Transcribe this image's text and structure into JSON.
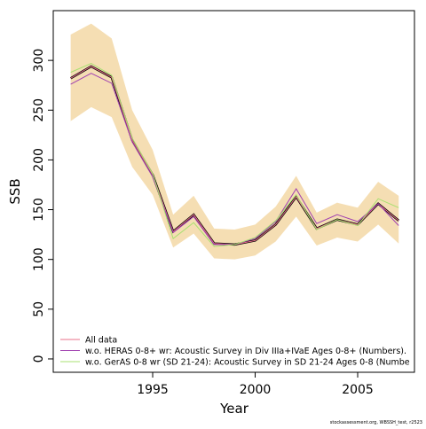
{
  "chart_data": {
    "type": "line",
    "x_label": "Year",
    "y_label": "SSB",
    "footnote": "stockassessment.org, WBSSH_test, r2523",
    "x": [
      1991,
      1992,
      1993,
      1994,
      1995,
      1996,
      1997,
      1998,
      1999,
      2000,
      2001,
      2002,
      2003,
      2004,
      2005,
      2006,
      2007
    ],
    "estimate": {
      "color": "#000000",
      "values": [
        282,
        294,
        283,
        220,
        185,
        128,
        145,
        116,
        115,
        119,
        135,
        163,
        131,
        140,
        135,
        156,
        139
      ]
    },
    "band": {
      "color": "#f5deb3",
      "upper": [
        326,
        337,
        322,
        250,
        210,
        145,
        164,
        131,
        130,
        135,
        153,
        184,
        147,
        157,
        152,
        178,
        164
      ],
      "lower": [
        239,
        253,
        243,
        193,
        165,
        112,
        126,
        101,
        100,
        104,
        118,
        143,
        114,
        122,
        118,
        135,
        116
      ]
    },
    "series": [
      {
        "name": "All data",
        "color": "#e8708a",
        "values": [
          282,
          294,
          283,
          220,
          185,
          128,
          145,
          116,
          115,
          119,
          135,
          163,
          131,
          140,
          135,
          156,
          139
        ]
      },
      {
        "name": "w.o. HERAS 0-8+ wr: Acoustic Survey in Div IIIa+IVaE Ages 0-8+ (Numbers).",
        "color": "#a040b0",
        "values": [
          276,
          287,
          277,
          218,
          183,
          127,
          143,
          115,
          115,
          121,
          138,
          171,
          136,
          145,
          138,
          156,
          134
        ]
      },
      {
        "name": "w.o. GerAS 0-8 wr (SD 21-24): Acoustic Survey in SD 21-24 Ages 0-8 (Numbe",
        "color": "#a8e070",
        "values": [
          288,
          297,
          285,
          222,
          186,
          121,
          137,
          113,
          115,
          122,
          139,
          165,
          130,
          140,
          134,
          161,
          152
        ]
      }
    ],
    "xlim": [
      1990.15,
      2007.77
    ],
    "ylim": [
      -13.4,
      350
    ],
    "xticks": [
      1995,
      2000,
      2005
    ],
    "yticks": [
      0,
      50,
      100,
      150,
      200,
      250,
      300
    ],
    "legend": "bottom-left"
  }
}
